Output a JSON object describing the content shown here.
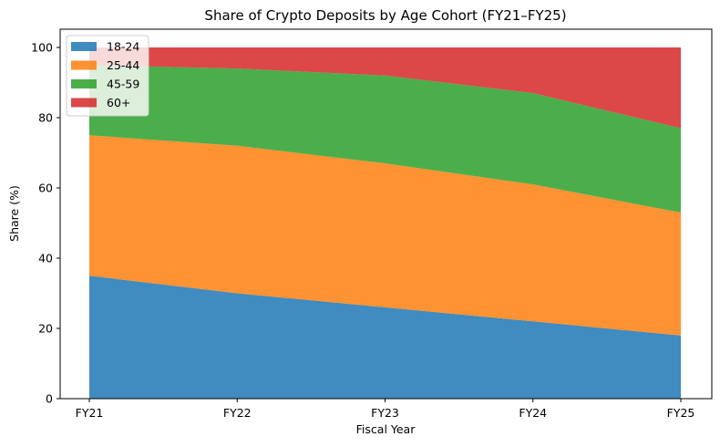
{
  "chart_data": {
    "type": "area",
    "stacked": true,
    "title": "Share of Crypto Deposits by Age Cohort (FY21–FY25)",
    "xlabel": "Fiscal Year",
    "ylabel": "Share (%)",
    "categories": [
      "FY21",
      "FY22",
      "FY23",
      "FY24",
      "FY25"
    ],
    "ylim": [
      0,
      105
    ],
    "yticks": [
      0,
      20,
      40,
      60,
      80,
      100
    ],
    "grid": false,
    "legend_position": "upper left",
    "series": [
      {
        "name": "18-24",
        "color": "#1f77b4",
        "values": [
          35,
          30,
          26,
          22,
          18
        ]
      },
      {
        "name": "25-44",
        "color": "#ff7f0e",
        "values": [
          40,
          42,
          41,
          39,
          35
        ]
      },
      {
        "name": "45-59",
        "color": "#2ca02c",
        "values": [
          20,
          22,
          25,
          26,
          24
        ]
      },
      {
        "name": "60+",
        "color": "#d62728",
        "values": [
          5,
          6,
          8,
          13,
          23
        ]
      }
    ]
  }
}
